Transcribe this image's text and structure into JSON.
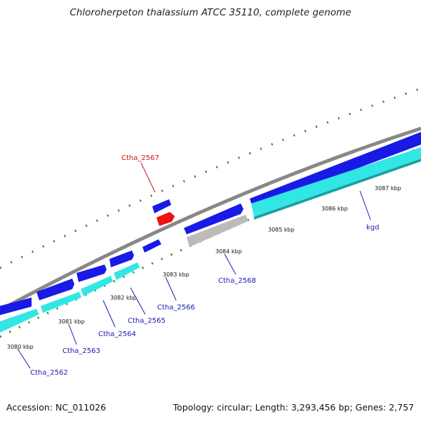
{
  "title": "Chloroherpeton thalassium ATCC 35110, complete genome",
  "footer": {
    "accession": "Accession: NC_011026",
    "summary": "Topology: circular; Length: 3,293,456 bp; Genes: 2,757"
  },
  "scale_labels": [
    "3080 kbp",
    "3081 kbp",
    "3082 kbp",
    "3083 kbp",
    "3084 kbp",
    "3085 kbp",
    "3086 kbp",
    "3087 kbp"
  ],
  "gene_labels": [
    "Ctha_2567",
    "Ctha_2562",
    "Ctha_2563",
    "Ctha_2564",
    "Ctha_2565",
    "Ctha_2566",
    "Ctha_2568",
    "kgd"
  ],
  "colors": {
    "backbone": "#888888",
    "forward_cds": "#1a1ae6",
    "reverse_track": "#33e6e6",
    "highlight_gene": "#ee1111",
    "pseudo_gene": "#bbbbbb",
    "tick_mark": "#2a8a2a",
    "label_default": "#1a1ab4",
    "label_highlight": "#cc1111"
  }
}
